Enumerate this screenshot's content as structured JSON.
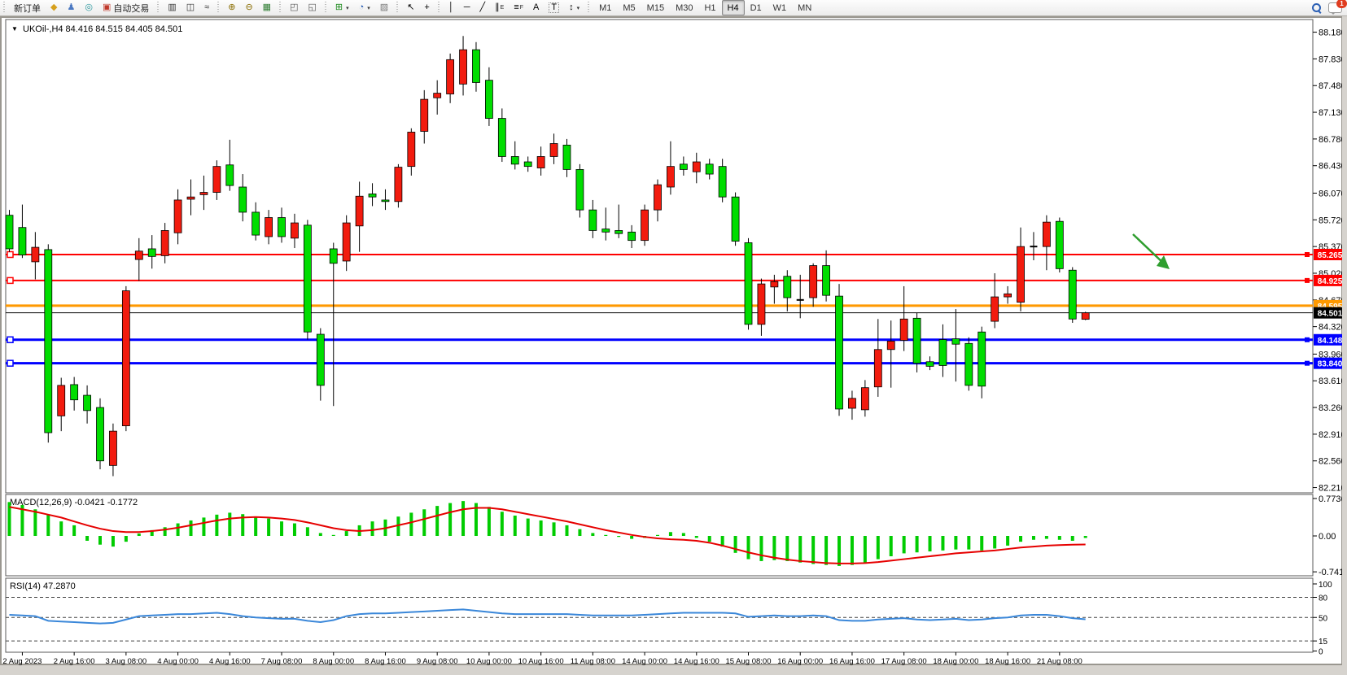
{
  "toolbar": {
    "new_order_label": "新订单",
    "autotrade_label": "自动交易",
    "icon_buttons_left": [
      {
        "name": "new-order-diamond-icon",
        "glyph": "◆",
        "color": "#d6a01d"
      },
      {
        "name": "profile-icon",
        "glyph": "♟",
        "color": "#4a78c2"
      },
      {
        "name": "signal-globe-icon",
        "glyph": "◎",
        "color": "#2e9aa0"
      }
    ],
    "autotrade_icon": {
      "name": "autotrade-icon",
      "glyph": "▣",
      "color": "#c0392b"
    },
    "chart_mode_buttons": [
      {
        "name": "bar-chart-button",
        "glyph": "▥",
        "color": "#333"
      },
      {
        "name": "candlestick-chart-button",
        "glyph": "◫",
        "color": "#333"
      },
      {
        "name": "line-chart-button",
        "glyph": "≈",
        "color": "#333"
      }
    ],
    "zoom_buttons": [
      {
        "name": "zoom-in-button",
        "glyph": "⊕",
        "color": "#8a6d00"
      },
      {
        "name": "zoom-out-button",
        "glyph": "⊖",
        "color": "#8a6d00"
      },
      {
        "name": "tile-windows-button",
        "glyph": "▦",
        "color": "#2e7d32"
      }
    ],
    "panel_buttons": [
      {
        "name": "toggle-market-watch-button",
        "glyph": "◰",
        "color": "#555"
      },
      {
        "name": "toggle-terminal-button",
        "glyph": "◱",
        "color": "#555"
      }
    ],
    "insert_buttons": [
      {
        "name": "add-indicator-button",
        "glyph": "⊞",
        "color": "#1c8a1c",
        "dropdown": true
      },
      {
        "name": "period-clock-button",
        "glyph": "◔",
        "color": "#2b5fb4",
        "dropdown": true
      },
      {
        "name": "chart-template-button",
        "glyph": "▨",
        "color": "#777"
      }
    ],
    "cursor_buttons": [
      {
        "name": "cursor-tool-button",
        "glyph": "↖",
        "color": "#000"
      },
      {
        "name": "crosshair-tool-button",
        "glyph": "+",
        "color": "#000"
      }
    ],
    "draw_buttons": [
      {
        "name": "vertical-line-tool",
        "glyph": "│",
        "color": "#000"
      },
      {
        "name": "horizontal-line-tool",
        "glyph": "─",
        "color": "#000"
      },
      {
        "name": "trendline-tool",
        "glyph": "╱",
        "color": "#000"
      },
      {
        "name": "equidistant-channel-tool",
        "glyph": "∥",
        "sub": "E",
        "color": "#000"
      },
      {
        "name": "fibonacci-tool",
        "glyph": "≡",
        "sub": "F",
        "color": "#000"
      },
      {
        "name": "text-tool",
        "glyph": "A",
        "color": "#000"
      },
      {
        "name": "text-label-tool",
        "glyph": "T",
        "color": "#000"
      },
      {
        "name": "arrows-tool",
        "glyph": "↕",
        "color": "#000",
        "dropdown": true
      }
    ],
    "timeframes": [
      "M1",
      "M5",
      "M15",
      "M30",
      "H1",
      "H4",
      "D1",
      "W1",
      "MN"
    ],
    "active_timeframe": "H4",
    "notification_count": "1"
  },
  "chart": {
    "dropdown_marker": "▼",
    "title": "UKOil-,H4",
    "ohlc": "84.416 84.515 84.405 84.501",
    "price_axis": [
      "88.180",
      "87.830",
      "87.480",
      "87.130",
      "86.780",
      "86.430",
      "86.070",
      "85.720",
      "85.370",
      "85.020",
      "84.670",
      "84.320",
      "83.960",
      "83.610",
      "83.260",
      "82.910",
      "82.560",
      "82.210"
    ],
    "colors": {
      "bull": "#f21b0e",
      "bear": "#00dd00",
      "wick": "#000000",
      "macd_hist": "#00cc00",
      "macd_signal": "#e60000",
      "rsi_line": "#3a87d9",
      "arrow": "#2f9e2f"
    }
  },
  "macd": {
    "label": "MACD(12,26,9) -0.0421 -0.1772",
    "axis": [
      "0.7736",
      "0.00",
      "-0.7418"
    ]
  },
  "rsi": {
    "label": "RSI(14) 47.2870",
    "axis": [
      "100",
      "80",
      "50",
      "15",
      "0"
    ]
  },
  "chart_data": {
    "type": "candlestick",
    "symbol": "UKOil-",
    "timeframe": "H4",
    "last_bar": {
      "open": "84.416",
      "high": "84.515",
      "low": "84.405",
      "close": "84.501"
    },
    "x_labels": [
      "2 Aug 2023",
      "2 Aug 16:00",
      "3 Aug 08:00",
      "4 Aug 00:00",
      "4 Aug 16:00",
      "7 Aug 08:00",
      "8 Aug 00:00",
      "8 Aug 16:00",
      "9 Aug 08:00",
      "10 Aug 00:00",
      "10 Aug 16:00",
      "11 Aug 08:00",
      "14 Aug 00:00",
      "14 Aug 16:00",
      "15 Aug 08:00",
      "16 Aug 00:00",
      "16 Aug 16:00",
      "17 Aug 08:00",
      "18 Aug 00:00",
      "18 Aug 16:00",
      "21 Aug 08:00"
    ],
    "ylim": [
      82.21,
      88.18
    ],
    "levels": [
      {
        "price": 85.265,
        "label": "85.265",
        "color": "#ff0000",
        "width": 2,
        "handle": true
      },
      {
        "price": 84.925,
        "label": "84.925",
        "color": "#ff0000",
        "width": 2,
        "handle": true
      },
      {
        "price": 84.595,
        "label": "84.595",
        "color": "#ff9900",
        "width": 3,
        "handle": false
      },
      {
        "price": 84.501,
        "label": "84.501",
        "color": "#000000",
        "width": 1,
        "handle": false
      },
      {
        "price": 84.148,
        "label": "84.148",
        "color": "#0000ff",
        "width": 3,
        "handle": true
      },
      {
        "price": 83.84,
        "label": "83.840",
        "color": "#0000ff",
        "width": 3,
        "handle": true
      }
    ],
    "candles": [
      [
        85.78,
        85.85,
        85.3,
        85.34
      ],
      [
        85.62,
        85.92,
        85.22,
        85.26
      ],
      [
        85.17,
        85.56,
        84.94,
        85.36
      ],
      [
        85.33,
        85.4,
        82.8,
        82.93
      ],
      [
        83.15,
        83.65,
        82.95,
        83.55
      ],
      [
        83.56,
        83.66,
        83.22,
        83.36
      ],
      [
        83.42,
        83.55,
        83.05,
        83.22
      ],
      [
        83.26,
        83.38,
        82.45,
        82.56
      ],
      [
        82.5,
        83.05,
        82.36,
        82.95
      ],
      [
        83.02,
        84.85,
        82.95,
        84.79
      ],
      [
        85.2,
        85.48,
        84.92,
        85.31
      ],
      [
        85.34,
        85.52,
        85.08,
        85.24
      ],
      [
        85.25,
        85.68,
        85.15,
        85.58
      ],
      [
        85.55,
        86.12,
        85.4,
        85.98
      ],
      [
        85.99,
        86.25,
        85.78,
        86.02
      ],
      [
        86.05,
        86.3,
        85.85,
        86.08
      ],
      [
        86.08,
        86.5,
        85.98,
        86.42
      ],
      [
        86.44,
        86.77,
        86.1,
        86.17
      ],
      [
        86.15,
        86.32,
        85.7,
        85.82
      ],
      [
        85.82,
        85.95,
        85.45,
        85.52
      ],
      [
        85.5,
        85.85,
        85.4,
        85.75
      ],
      [
        85.75,
        85.88,
        85.42,
        85.5
      ],
      [
        85.48,
        85.8,
        85.35,
        85.68
      ],
      [
        85.65,
        85.72,
        84.15,
        84.25
      ],
      [
        84.22,
        84.3,
        83.35,
        83.55
      ],
      [
        85.34,
        85.42,
        83.28,
        85.15
      ],
      [
        85.18,
        85.78,
        85.05,
        85.68
      ],
      [
        85.64,
        86.22,
        85.3,
        86.03
      ],
      [
        86.06,
        86.2,
        85.9,
        86.02
      ],
      [
        85.98,
        86.12,
        85.85,
        85.96
      ],
      [
        85.96,
        86.45,
        85.88,
        86.41
      ],
      [
        86.42,
        86.92,
        86.3,
        86.87
      ],
      [
        86.88,
        87.42,
        86.72,
        87.3
      ],
      [
        87.32,
        87.55,
        87.1,
        87.38
      ],
      [
        87.37,
        87.9,
        87.25,
        87.82
      ],
      [
        87.5,
        88.13,
        87.35,
        87.95
      ],
      [
        87.95,
        88.05,
        87.4,
        87.52
      ],
      [
        87.55,
        87.72,
        86.95,
        87.05
      ],
      [
        87.05,
        87.18,
        86.48,
        86.55
      ],
      [
        86.55,
        86.75,
        86.38,
        86.45
      ],
      [
        86.48,
        86.55,
        86.35,
        86.42
      ],
      [
        86.4,
        86.68,
        86.3,
        86.55
      ],
      [
        86.55,
        86.85,
        86.45,
        86.72
      ],
      [
        86.7,
        86.78,
        86.28,
        86.38
      ],
      [
        86.38,
        86.45,
        85.75,
        85.85
      ],
      [
        85.85,
        85.98,
        85.48,
        85.58
      ],
      [
        85.6,
        85.88,
        85.45,
        85.56
      ],
      [
        85.58,
        85.92,
        85.48,
        85.54
      ],
      [
        85.56,
        85.65,
        85.35,
        85.45
      ],
      [
        85.45,
        85.92,
        85.38,
        85.85
      ],
      [
        85.85,
        86.25,
        85.7,
        86.18
      ],
      [
        86.15,
        86.75,
        86.05,
        86.42
      ],
      [
        86.45,
        86.55,
        86.3,
        86.38
      ],
      [
        86.35,
        86.6,
        86.2,
        86.48
      ],
      [
        86.45,
        86.52,
        86.25,
        86.32
      ],
      [
        86.42,
        86.52,
        85.95,
        86.02
      ],
      [
        86.02,
        86.08,
        85.38,
        85.44
      ],
      [
        85.42,
        85.48,
        84.28,
        84.35
      ],
      [
        84.35,
        84.95,
        84.2,
        84.88
      ],
      [
        84.84,
        85.0,
        84.62,
        84.91
      ],
      [
        84.98,
        85.06,
        84.52,
        84.7
      ],
      [
        84.67,
        85.0,
        84.43,
        84.67
      ],
      [
        84.7,
        85.15,
        84.58,
        85.12
      ],
      [
        85.12,
        85.32,
        84.65,
        84.73
      ],
      [
        84.72,
        84.88,
        83.15,
        83.24
      ],
      [
        83.25,
        83.48,
        83.1,
        83.38
      ],
      [
        83.23,
        83.62,
        83.14,
        83.52
      ],
      [
        83.53,
        84.42,
        83.4,
        84.02
      ],
      [
        84.02,
        84.4,
        83.52,
        84.13
      ],
      [
        84.14,
        84.85,
        84.0,
        84.42
      ],
      [
        84.43,
        84.5,
        83.72,
        83.84
      ],
      [
        83.86,
        83.93,
        83.75,
        83.8
      ],
      [
        84.15,
        84.35,
        83.66,
        83.81
      ],
      [
        84.16,
        84.55,
        83.6,
        84.09
      ],
      [
        84.1,
        84.18,
        83.48,
        83.55
      ],
      [
        84.25,
        84.32,
        83.38,
        83.54
      ],
      [
        84.39,
        85.02,
        84.3,
        84.71
      ],
      [
        84.71,
        84.85,
        84.62,
        84.75
      ],
      [
        84.64,
        85.62,
        84.52,
        85.37
      ],
      [
        85.37,
        85.56,
        85.19,
        85.37
      ],
      [
        85.37,
        85.78,
        85.06,
        85.69
      ],
      [
        85.7,
        85.75,
        85.03,
        85.08
      ],
      [
        85.06,
        85.1,
        84.37,
        84.42
      ],
      [
        84.416,
        84.515,
        84.405,
        84.501
      ]
    ],
    "macd_histogram": [
      0.7,
      0.64,
      0.55,
      0.44,
      0.3,
      0.22,
      -0.1,
      -0.18,
      -0.22,
      -0.12,
      0.05,
      0.12,
      0.18,
      0.26,
      0.32,
      0.38,
      0.44,
      0.48,
      0.45,
      0.4,
      0.36,
      0.3,
      0.26,
      0.18,
      0.06,
      0.02,
      0.1,
      0.22,
      0.3,
      0.34,
      0.4,
      0.48,
      0.55,
      0.62,
      0.68,
      0.72,
      0.68,
      0.6,
      0.5,
      0.42,
      0.36,
      0.32,
      0.28,
      0.22,
      0.14,
      0.06,
      0.02,
      -0.02,
      -0.06,
      -0.04,
      0.02,
      0.08,
      0.06,
      -0.04,
      -0.12,
      -0.22,
      -0.35,
      -0.48,
      -0.52,
      -0.5,
      -0.52,
      -0.55,
      -0.58,
      -0.6,
      -0.62,
      -0.6,
      -0.55,
      -0.48,
      -0.42,
      -0.36,
      -0.34,
      -0.32,
      -0.3,
      -0.28,
      -0.28,
      -0.3,
      -0.26,
      -0.2,
      -0.12,
      -0.08,
      -0.06,
      -0.08,
      -0.1,
      -0.042
    ],
    "macd_signal": [
      0.6,
      0.55,
      0.5,
      0.44,
      0.38,
      0.3,
      0.22,
      0.15,
      0.1,
      0.08,
      0.08,
      0.1,
      0.13,
      0.17,
      0.22,
      0.27,
      0.32,
      0.36,
      0.38,
      0.39,
      0.38,
      0.36,
      0.33,
      0.28,
      0.22,
      0.16,
      0.12,
      0.1,
      0.12,
      0.16,
      0.22,
      0.28,
      0.35,
      0.42,
      0.49,
      0.55,
      0.58,
      0.58,
      0.55,
      0.5,
      0.45,
      0.4,
      0.35,
      0.3,
      0.24,
      0.18,
      0.12,
      0.07,
      0.02,
      -0.02,
      -0.05,
      -0.07,
      -0.08,
      -0.1,
      -0.14,
      -0.2,
      -0.27,
      -0.34,
      -0.4,
      -0.45,
      -0.49,
      -0.52,
      -0.54,
      -0.56,
      -0.57,
      -0.57,
      -0.56,
      -0.54,
      -0.51,
      -0.48,
      -0.45,
      -0.42,
      -0.39,
      -0.36,
      -0.34,
      -0.32,
      -0.3,
      -0.27,
      -0.24,
      -0.22,
      -0.2,
      -0.19,
      -0.18,
      -0.177
    ],
    "rsi": [
      54,
      53,
      52,
      45,
      44,
      43,
      42,
      41,
      42,
      47,
      52,
      53,
      54,
      55,
      55,
      56,
      57,
      55,
      52,
      50,
      49,
      48,
      48,
      45,
      43,
      46,
      52,
      55,
      56,
      56,
      57,
      58,
      59,
      60,
      61,
      62,
      60,
      58,
      56,
      55,
      55,
      55,
      55,
      55,
      54,
      53,
      53,
      53,
      53,
      54,
      55,
      56,
      57,
      57,
      57,
      57,
      56,
      51,
      52,
      53,
      52,
      52,
      53,
      52,
      46,
      45,
      45,
      47,
      48,
      49,
      47,
      46,
      47,
      48,
      46,
      47,
      49,
      50,
      53,
      54,
      54,
      52,
      49,
      47.287
    ],
    "rsi_levels": [
      80,
      50,
      15
    ],
    "macd_values": {
      "main": "-0.0421",
      "signal": "-0.1772"
    },
    "rsi_value": "47.2870"
  }
}
